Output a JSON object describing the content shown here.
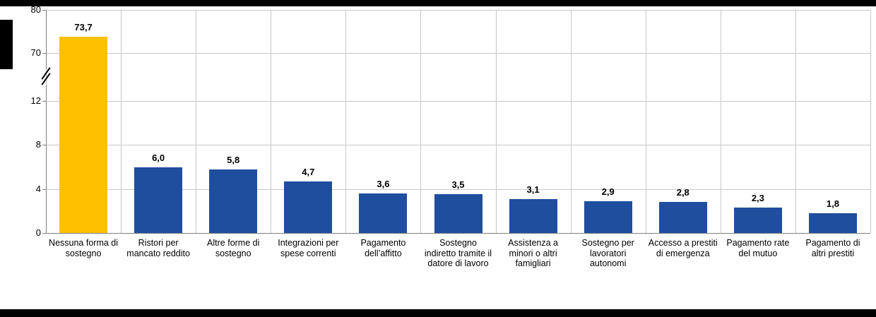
{
  "chart_data": {
    "type": "bar",
    "title": "",
    "categories": [
      "Nessuna forma di sostegno",
      "Ristori per mancato reddito",
      "Altre forme di sostegno",
      "Integrazioni per spese correnti",
      "Pagamento dell’affitto",
      "Sostegno indiretto tramite il datore di lavoro",
      "Assistenza a minori o altri famigliari",
      "Sostegno per lavoratori autonomi",
      "Accesso a prestiti di emergenza",
      "Pagamento rate del mutuo",
      "Pagamento di altri prestiti"
    ],
    "values": [
      73.7,
      6.0,
      5.8,
      4.7,
      3.6,
      3.5,
      3.1,
      2.9,
      2.8,
      2.3,
      1.8
    ],
    "value_labels": [
      "73,7",
      "6,0",
      "5,8",
      "4,7",
      "3,6",
      "3,5",
      "3,1",
      "2,9",
      "2,8",
      "2,3",
      "1,8"
    ],
    "highlight_index": 0,
    "colors": {
      "highlight": "#FFC000",
      "default": "#1F4E9F",
      "gridline": "#C8C8C8",
      "axis": "#7F7F7F",
      "frame": "#000000"
    },
    "y_axis": {
      "axis_break": true,
      "lower_range": [
        0,
        12
      ],
      "upper_range": [
        70,
        80
      ],
      "lower_ticks": [
        0,
        4,
        8,
        12
      ],
      "upper_ticks": [
        70,
        80
      ]
    },
    "grid": true,
    "legend": "none"
  }
}
